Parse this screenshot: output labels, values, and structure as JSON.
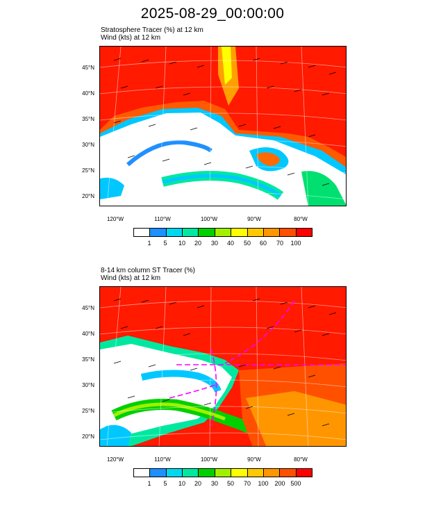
{
  "title": "2025-08-29_00:00:00",
  "panels": [
    {
      "line1": "Stratosphere Tracer   (%)    at   12 km",
      "line2": "Wind   (kts)    at   12 km",
      "colorbar_labels": [
        "1",
        "5",
        "10",
        "20",
        "30",
        "40",
        "50",
        "60",
        "70",
        "100"
      ]
    },
    {
      "line1": "8-14 km column ST Tracer   (%)",
      "line2": "Wind   (kts)    at   12 km",
      "colorbar_labels": [
        "1",
        "5",
        "10",
        "20",
        "30",
        "50",
        "70",
        "100",
        "200",
        "500"
      ]
    }
  ],
  "lat_labels": [
    "45°N",
    "40°N",
    "35°N",
    "30°N",
    "25°N",
    "20°N"
  ],
  "lon_labels": [
    "120°W",
    "110°W",
    "100°W",
    "90°W",
    "80°W"
  ],
  "colorbar_colors": [
    "#ffffff",
    "#1e90ff",
    "#00d8f0",
    "#00e8a0",
    "#00d000",
    "#a0f000",
    "#ffff00",
    "#ffc800",
    "#ff9600",
    "#ff5000",
    "#ff0000"
  ]
}
